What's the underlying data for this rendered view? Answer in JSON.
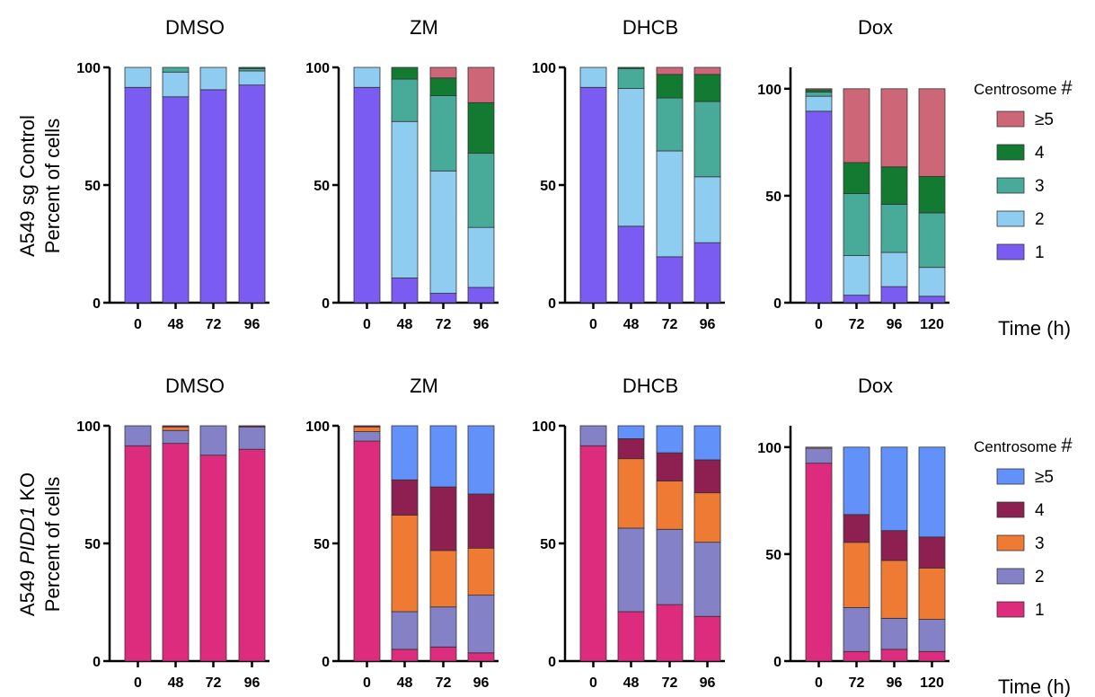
{
  "row_labels": [
    {
      "line1": "A549 sg Control",
      "line2": "Percent of cells"
    },
    {
      "line1_pre": "A549 ",
      "line1_italic": "PIDD1",
      "line1_post": " KO",
      "line2": "Percent of cells"
    }
  ],
  "legends": [
    {
      "title_text": "Centrosome ",
      "title_mark": "#",
      "entries": [
        "≥5",
        "4",
        "3",
        "2",
        "1"
      ]
    },
    {
      "title_text": "Centrosome ",
      "title_mark": "#",
      "entries": [
        "≥5",
        "4",
        "3",
        "2",
        "1"
      ]
    }
  ],
  "xlabels": [
    "Time (h)",
    "Time (h)"
  ],
  "palettes": [
    {
      "c1": "#7a5cf2",
      "c2": "#8fcdf0",
      "c3": "#48aa98",
      "c4": "#137a32",
      "c5": "#cd6677"
    },
    {
      "c1": "#dd2b7d",
      "c2": "#8481c7",
      "c3": "#ef7a33",
      "c4": "#8d2050",
      "c5": "#6292f9"
    }
  ],
  "chart_data": [
    {
      "type": "bar",
      "stacked": true,
      "title": "DMSO",
      "categories": [
        "0",
        "48",
        "72",
        "96"
      ],
      "ylim": [
        0,
        100
      ],
      "yticks": [
        0,
        50,
        100
      ],
      "series": [
        {
          "name": "1",
          "values": [
            91.5,
            87.5,
            90.5,
            92.5
          ]
        },
        {
          "name": "2",
          "values": [
            8.5,
            10.5,
            9.5,
            6.0
          ]
        },
        {
          "name": "3",
          "values": [
            0,
            2.0,
            0,
            1.0
          ]
        },
        {
          "name": "4",
          "values": [
            0,
            0,
            0,
            0.5
          ]
        },
        {
          "name": "≥5",
          "values": [
            0,
            0,
            0,
            0
          ]
        }
      ]
    },
    {
      "type": "bar",
      "stacked": true,
      "title": "ZM",
      "categories": [
        "0",
        "48",
        "72",
        "96"
      ],
      "ylim": [
        0,
        100
      ],
      "yticks": [
        0,
        50,
        100
      ],
      "series": [
        {
          "name": "1",
          "values": [
            91.5,
            10.5,
            4.0,
            6.5
          ]
        },
        {
          "name": "2",
          "values": [
            8.5,
            66.5,
            52.0,
            25.5
          ]
        },
        {
          "name": "3",
          "values": [
            0,
            18.0,
            32.0,
            31.5
          ]
        },
        {
          "name": "4",
          "values": [
            0,
            5.0,
            7.5,
            21.5
          ]
        },
        {
          "name": "≥5",
          "values": [
            0,
            0,
            4.5,
            15.0
          ]
        }
      ]
    },
    {
      "type": "bar",
      "stacked": true,
      "title": "DHCB",
      "categories": [
        "0",
        "48",
        "72",
        "96"
      ],
      "ylim": [
        0,
        100
      ],
      "yticks": [
        0,
        50,
        100
      ],
      "series": [
        {
          "name": "1",
          "values": [
            91.5,
            32.5,
            19.5,
            25.5
          ]
        },
        {
          "name": "2",
          "values": [
            8.5,
            58.5,
            45.0,
            28.0
          ]
        },
        {
          "name": "3",
          "values": [
            0,
            8.5,
            22.5,
            32.0
          ]
        },
        {
          "name": "4",
          "values": [
            0,
            0.5,
            10.0,
            11.5
          ]
        },
        {
          "name": "≥5",
          "values": [
            0,
            0,
            3.0,
            3.0
          ]
        }
      ]
    },
    {
      "type": "bar",
      "stacked": true,
      "title": "Dox",
      "categories": [
        "0",
        "72",
        "96",
        "120"
      ],
      "ylim": [
        0,
        110
      ],
      "yticks": [
        0,
        50,
        100
      ],
      "series": [
        {
          "name": "1",
          "values": [
            89.5,
            3.5,
            7.5,
            3.0
          ]
        },
        {
          "name": "2",
          "values": [
            7.0,
            18.5,
            16.0,
            13.5
          ]
        },
        {
          "name": "3",
          "values": [
            2.0,
            29.0,
            22.5,
            25.5
          ]
        },
        {
          "name": "4",
          "values": [
            1.0,
            14.5,
            17.5,
            17.0
          ]
        },
        {
          "name": "≥5",
          "values": [
            0.5,
            34.5,
            36.5,
            41.0
          ]
        }
      ]
    },
    {
      "type": "bar",
      "stacked": true,
      "title": "DMSO",
      "categories": [
        "0",
        "48",
        "72",
        "96"
      ],
      "ylim": [
        0,
        100
      ],
      "yticks": [
        0,
        50,
        100
      ],
      "series": [
        {
          "name": "1",
          "values": [
            91.5,
            92.5,
            87.5,
            90.0
          ]
        },
        {
          "name": "2",
          "values": [
            8.5,
            5.5,
            12.5,
            9.5
          ]
        },
        {
          "name": "3",
          "values": [
            0,
            1.5,
            0,
            0
          ]
        },
        {
          "name": "4",
          "values": [
            0,
            0.5,
            0,
            0.5
          ]
        },
        {
          "name": "≥5",
          "values": [
            0,
            0,
            0,
            0
          ]
        }
      ]
    },
    {
      "type": "bar",
      "stacked": true,
      "title": "ZM",
      "categories": [
        "0",
        "48",
        "72",
        "96"
      ],
      "ylim": [
        0,
        100
      ],
      "yticks": [
        0,
        50,
        100
      ],
      "series": [
        {
          "name": "1",
          "values": [
            93.5,
            5.0,
            6.0,
            3.5
          ]
        },
        {
          "name": "2",
          "values": [
            4.0,
            16.0,
            17.0,
            24.5
          ]
        },
        {
          "name": "3",
          "values": [
            2.0,
            41.0,
            24.0,
            20.0
          ]
        },
        {
          "name": "4",
          "values": [
            0.5,
            15.0,
            27.0,
            23.0
          ]
        },
        {
          "name": "≥5",
          "values": [
            0,
            23.0,
            26.0,
            29.0
          ]
        }
      ]
    },
    {
      "type": "bar",
      "stacked": true,
      "title": "DHCB",
      "categories": [
        "0",
        "48",
        "72",
        "96"
      ],
      "ylim": [
        0,
        100
      ],
      "yticks": [
        0,
        50,
        100
      ],
      "series": [
        {
          "name": "1",
          "values": [
            91.5,
            21.0,
            24.0,
            19.0
          ]
        },
        {
          "name": "2",
          "values": [
            8.5,
            35.5,
            32.0,
            31.5
          ]
        },
        {
          "name": "3",
          "values": [
            0,
            29.5,
            20.5,
            21.0
          ]
        },
        {
          "name": "4",
          "values": [
            0,
            8.5,
            12.0,
            14.0
          ]
        },
        {
          "name": "≥5",
          "values": [
            0,
            5.5,
            11.5,
            14.5
          ]
        }
      ]
    },
    {
      "type": "bar",
      "stacked": true,
      "title": "Dox",
      "categories": [
        "0",
        "72",
        "96",
        "120"
      ],
      "ylim": [
        0,
        110
      ],
      "yticks": [
        0,
        50,
        100
      ],
      "series": [
        {
          "name": "1",
          "values": [
            92.5,
            4.5,
            5.5,
            4.5
          ]
        },
        {
          "name": "2",
          "values": [
            7.0,
            20.5,
            14.5,
            15.0
          ]
        },
        {
          "name": "3",
          "values": [
            0.5,
            30.5,
            27.0,
            24.0
          ]
        },
        {
          "name": "4",
          "values": [
            0,
            13.0,
            14.0,
            14.5
          ]
        },
        {
          "name": "≥5",
          "values": [
            0,
            31.5,
            39.0,
            42.0
          ]
        }
      ]
    }
  ]
}
